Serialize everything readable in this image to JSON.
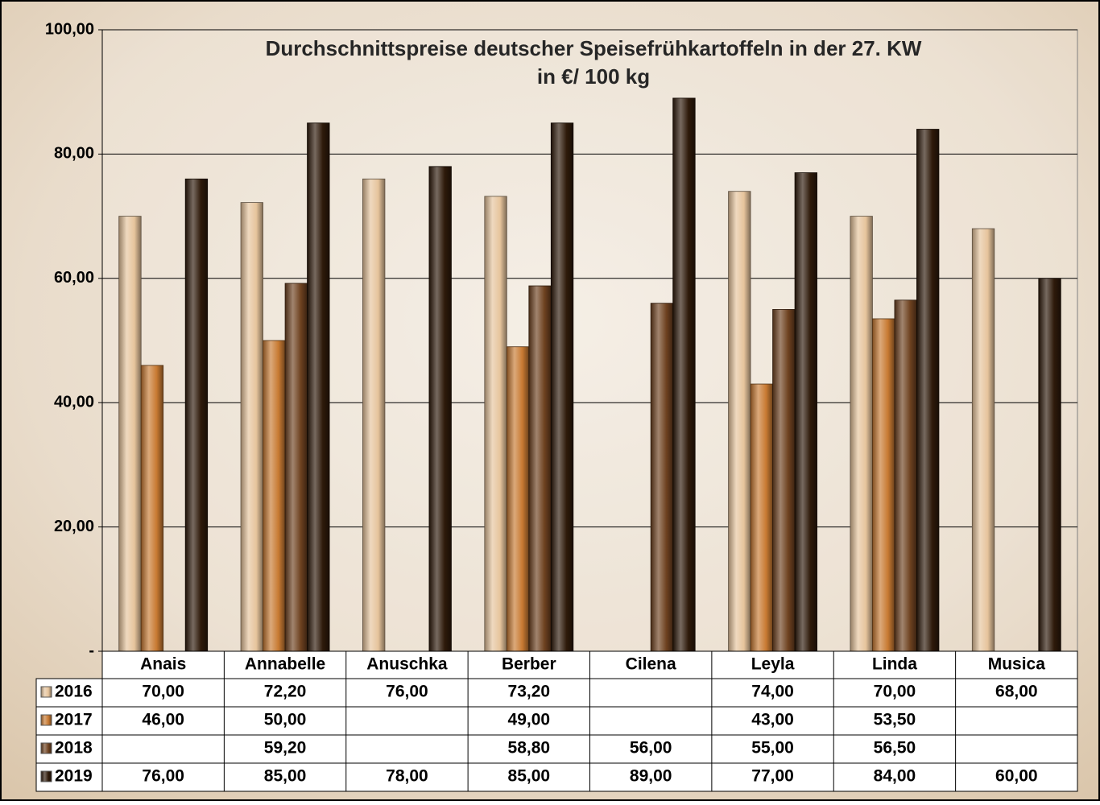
{
  "chart_data": {
    "type": "bar",
    "title": "Durchschnittspreise deutscher Speisefrühkartoffeln in der 27. KW",
    "subtitle": "in €/ 100 kg",
    "categories": [
      "Anais",
      "Annabelle",
      "Anuschka",
      "Berber",
      "Cilena",
      "Leyla",
      "Linda",
      "Musica"
    ],
    "series": [
      {
        "name": "2016",
        "color": "#e6c49c",
        "values": [
          70,
          72.2,
          76,
          73.2,
          null,
          74,
          70,
          68
        ],
        "value_labels": [
          "70,00",
          "72,20",
          "76,00",
          "73,20",
          null,
          "74,00",
          "70,00",
          "68,00"
        ]
      },
      {
        "name": "2017",
        "color": "#c87a32",
        "values": [
          46,
          50,
          null,
          49,
          null,
          43,
          53.5,
          null
        ],
        "value_labels": [
          "46,00",
          "50,00",
          null,
          "49,00",
          null,
          "43,00",
          "53,50",
          null
        ]
      },
      {
        "name": "2018",
        "color": "#6e4220",
        "values": [
          null,
          59.2,
          null,
          58.8,
          56,
          55,
          56.5,
          null
        ],
        "value_labels": [
          null,
          "59,20",
          null,
          "58,80",
          "56,00",
          "55,00",
          "56,50",
          null
        ]
      },
      {
        "name": "2019",
        "color": "#2e1a0a",
        "values": [
          76,
          85,
          78,
          85,
          89,
          77,
          84,
          60
        ],
        "value_labels": [
          "76,00",
          "85,00",
          "78,00",
          "85,00",
          "89,00",
          "77,00",
          "84,00",
          "60,00"
        ]
      }
    ],
    "ylim": [
      0,
      100
    ],
    "yticks": [
      {
        "value": 0,
        "label": "-"
      },
      {
        "value": 20,
        "label": "20,00"
      },
      {
        "value": 40,
        "label": "40,00"
      },
      {
        "value": 60,
        "label": "60,00"
      },
      {
        "value": 80,
        "label": "80,00"
      },
      {
        "value": 100,
        "label": "100,00"
      }
    ],
    "grid": true
  }
}
